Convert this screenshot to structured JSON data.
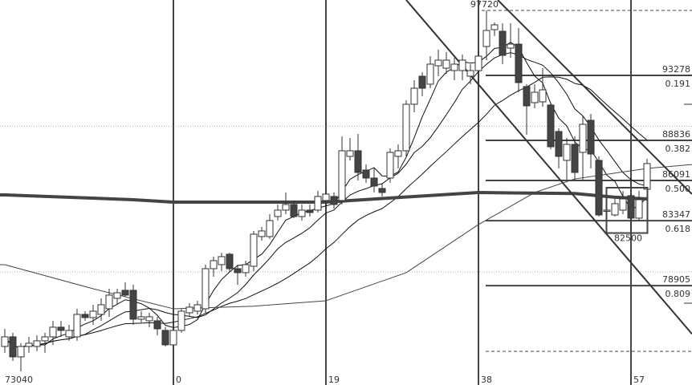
{
  "chart_data": {
    "type": "candlestick",
    "title": "",
    "xlabel": "",
    "ylabel": "",
    "x_index_range": [
      -21,
      59
    ],
    "ylim": [
      72100,
      98200
    ],
    "grid": "dotted horizontal",
    "colors": {
      "up_fill": "#ffffff",
      "down_fill": "#444444",
      "line": "#333333",
      "ma": "#111111"
    },
    "x_labels": [
      {
        "index": 0,
        "text": "0"
      },
      {
        "index": 19,
        "text": "19"
      },
      {
        "index": 38,
        "text": "38"
      },
      {
        "index": 57,
        "text": "57"
      }
    ],
    "low_label": {
      "index": -21,
      "text": "73040"
    },
    "high_label": {
      "value": 97720,
      "text": "97720"
    },
    "box_label": {
      "value": 82500,
      "text": "82500",
      "index_range": [
        54,
        59
      ],
      "price_range": [
        82500,
        85600
      ]
    },
    "bottom_dashed_level": 74413,
    "gridlines": [
      89800,
      79850
    ],
    "fib_levels": [
      {
        "value": 93278,
        "price_text": "93278",
        "ratio_text": "0.191"
      },
      {
        "value": 88836,
        "price_text": "88836",
        "ratio_text": "0.382"
      },
      {
        "value": 86091,
        "price_text": "86091",
        "ratio_text": "0.500"
      },
      {
        "value": 83347,
        "price_text": "83347",
        "ratio_text": "0.618"
      },
      {
        "value": 78905,
        "price_text": "78905",
        "ratio_text": "0.809"
      }
    ],
    "candles_ohlc_from_index": -21,
    "candles": [
      [
        74745,
        75952,
        74307,
        75403
      ],
      [
        75403,
        75678,
        73758,
        74033
      ],
      [
        74033,
        74965,
        73040,
        74745
      ],
      [
        74745,
        75403,
        74307,
        74965
      ],
      [
        74745,
        75513,
        74417,
        75130
      ],
      [
        75130,
        75678,
        74307,
        75403
      ],
      [
        75403,
        76500,
        74855,
        76062
      ],
      [
        76062,
        76500,
        75403,
        75842
      ],
      [
        75403,
        76226,
        75130,
        75842
      ],
      [
        75403,
        77323,
        75130,
        76938
      ],
      [
        76938,
        77158,
        76500,
        76719
      ],
      [
        76719,
        77597,
        76226,
        77158
      ],
      [
        76938,
        78036,
        76500,
        77597
      ],
      [
        77323,
        78693,
        76774,
        78255
      ],
      [
        78036,
        78693,
        77597,
        78419
      ],
      [
        78584,
        79132,
        78145,
        78255
      ],
      [
        78584,
        78968,
        76226,
        76610
      ],
      [
        76610,
        77158,
        76390,
        76774
      ],
      [
        76500,
        77048,
        76062,
        76774
      ],
      [
        76500,
        76774,
        75513,
        75952
      ],
      [
        75842,
        76062,
        74745,
        74855
      ],
      [
        74855,
        76062,
        74745,
        75842
      ],
      [
        75842,
        77323,
        75678,
        77158
      ],
      [
        77048,
        77707,
        76774,
        77432
      ],
      [
        77158,
        77871,
        76938,
        77597
      ],
      [
        77323,
        80338,
        77048,
        80064
      ],
      [
        80064,
        80887,
        79516,
        80612
      ],
      [
        80338,
        81161,
        79900,
        80887
      ],
      [
        81051,
        81161,
        79790,
        80064
      ],
      [
        80064,
        80338,
        78968,
        79790
      ],
      [
        79790,
        80612,
        79516,
        80338
      ],
      [
        80229,
        82642,
        79900,
        82422
      ],
      [
        82258,
        82916,
        81983,
        82642
      ],
      [
        82258,
        83793,
        82093,
        83354
      ],
      [
        83628,
        84451,
        83354,
        84067
      ],
      [
        84067,
        85273,
        83793,
        84451
      ],
      [
        84451,
        84725,
        83519,
        83628
      ],
      [
        83628,
        84451,
        83354,
        84067
      ],
      [
        84067,
        84451,
        83628,
        83903
      ],
      [
        84067,
        85384,
        83903,
        85000
      ],
      [
        84725,
        85384,
        84286,
        85164
      ],
      [
        85000,
        85273,
        84177,
        84451
      ],
      [
        84725,
        89112,
        84451,
        88125
      ],
      [
        87741,
        89002,
        87467,
        88125
      ],
      [
        88125,
        89277,
        86096,
        86644
      ],
      [
        86808,
        87193,
        85932,
        86260
      ],
      [
        86260,
        86918,
        85273,
        85712
      ],
      [
        85547,
        85932,
        85000,
        85273
      ],
      [
        86260,
        88289,
        85932,
        88015
      ],
      [
        87741,
        88563,
        86918,
        88125
      ],
      [
        88125,
        91579,
        87741,
        91305
      ],
      [
        91305,
        92950,
        90757,
        92402
      ],
      [
        93224,
        93498,
        91853,
        92402
      ],
      [
        92676,
        94595,
        92402,
        94047
      ],
      [
        93937,
        95034,
        93224,
        94321
      ],
      [
        93772,
        94869,
        93388,
        94321
      ],
      [
        93608,
        94485,
        92950,
        94047
      ],
      [
        93608,
        94704,
        92950,
        94321
      ],
      [
        93224,
        94047,
        92676,
        93608
      ],
      [
        93608,
        94869,
        92676,
        94595
      ],
      [
        95253,
        97720,
        94321,
        96350
      ],
      [
        96405,
        96899,
        95966,
        96734
      ],
      [
        96295,
        96844,
        94047,
        94650
      ],
      [
        95143,
        96844,
        94485,
        95417
      ],
      [
        95417,
        96515,
        92127,
        92786
      ],
      [
        92511,
        92676,
        89222,
        91195
      ],
      [
        91414,
        92676,
        91031,
        92127
      ],
      [
        91469,
        93772,
        91140,
        92292
      ],
      [
        91250,
        91414,
        88234,
        88399
      ],
      [
        89441,
        89660,
        86918,
        87741
      ],
      [
        87467,
        89002,
        86096,
        88563
      ],
      [
        88563,
        89112,
        86096,
        86644
      ],
      [
        88015,
        90483,
        86096,
        89934
      ],
      [
        90208,
        90647,
        86918,
        87905
      ],
      [
        87467,
        87741,
        83628,
        83738
      ],
      [
        84067,
        84286,
        83903,
        84067
      ],
      [
        83738,
        84835,
        83628,
        84506
      ],
      [
        84067,
        85384,
        83793,
        84835
      ],
      [
        85054,
        85273,
        82500,
        83519
      ],
      [
        83519,
        85384,
        83299,
        84780
      ],
      [
        85493,
        87577,
        85273,
        87248
      ]
    ],
    "moving_averages_computed": [
      5,
      10,
      20
    ],
    "long_ma_thick": [
      [
        -21,
        85110
      ],
      [
        -5,
        84780
      ],
      [
        0,
        84615
      ],
      [
        19,
        84615
      ],
      [
        30,
        85000
      ],
      [
        38,
        85270
      ],
      [
        50,
        85200
      ],
      [
        55,
        84950
      ],
      [
        59,
        84835
      ]
    ],
    "long_ma_thin": [
      [
        -21,
        80338
      ],
      [
        -10,
        78693
      ],
      [
        0,
        77323
      ],
      [
        10,
        77500
      ],
      [
        19,
        77870
      ],
      [
        29,
        79790
      ],
      [
        38,
        83080
      ],
      [
        45,
        85270
      ],
      [
        50,
        86200
      ],
      [
        59,
        86918
      ]
    ],
    "trendlines": [
      {
        "from": [
          29,
          98433
        ],
        "to": [
          64.6,
          75600
        ]
      },
      {
        "from": [
          40.4,
          98433
        ],
        "to": [
          64.6,
          85160
        ]
      }
    ]
  }
}
